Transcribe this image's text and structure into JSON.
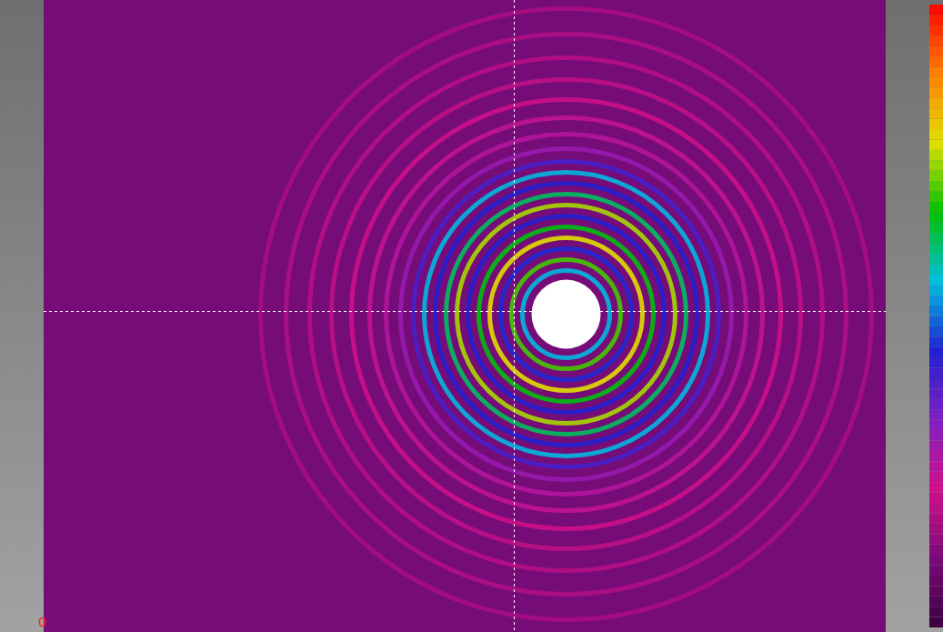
{
  "chart_data": {
    "type": "rings",
    "xlim": [
      0,
      926
    ],
    "ylim": [
      0,
      695
    ],
    "tick_labels": false,
    "corner_label": "0",
    "center": [
      574,
      345
    ],
    "crosshair": [
      517,
      342
    ],
    "core": {
      "radius": 38,
      "color": "#ffffff"
    },
    "rings": [
      {
        "radius": 48,
        "intensity": 0.55
      },
      {
        "radius": 60,
        "intensity": 0.7
      },
      {
        "radius": 72,
        "intensity": 0.45
      },
      {
        "radius": 84,
        "intensity": 0.78
      },
      {
        "radius": 96,
        "intensity": 0.66
      },
      {
        "radius": 108,
        "intensity": 0.44
      },
      {
        "radius": 120,
        "intensity": 0.75
      },
      {
        "radius": 132,
        "intensity": 0.62
      },
      {
        "radius": 144,
        "intensity": 0.44
      },
      {
        "radius": 156,
        "intensity": 0.55
      },
      {
        "radius": 168,
        "intensity": 0.4
      },
      {
        "radius": 182,
        "intensity": 0.3
      },
      {
        "radius": 198,
        "intensity": 0.26
      },
      {
        "radius": 216,
        "intensity": 0.24
      },
      {
        "radius": 236,
        "intensity": 0.22
      },
      {
        "radius": 258,
        "intensity": 0.2
      },
      {
        "radius": 282,
        "intensity": 0.19
      },
      {
        "radius": 308,
        "intensity": 0.18
      },
      {
        "radius": 336,
        "intensity": 0.17
      }
    ],
    "color_range": [
      0,
      1
    ],
    "colors": [
      "#3a0040",
      "#7a0a7a",
      "#d0108a",
      "#8020c0",
      "#2020d0",
      "#00c0e0",
      "#00c000",
      "#e0e000",
      "#ff8000",
      "#ff0000"
    ]
  }
}
